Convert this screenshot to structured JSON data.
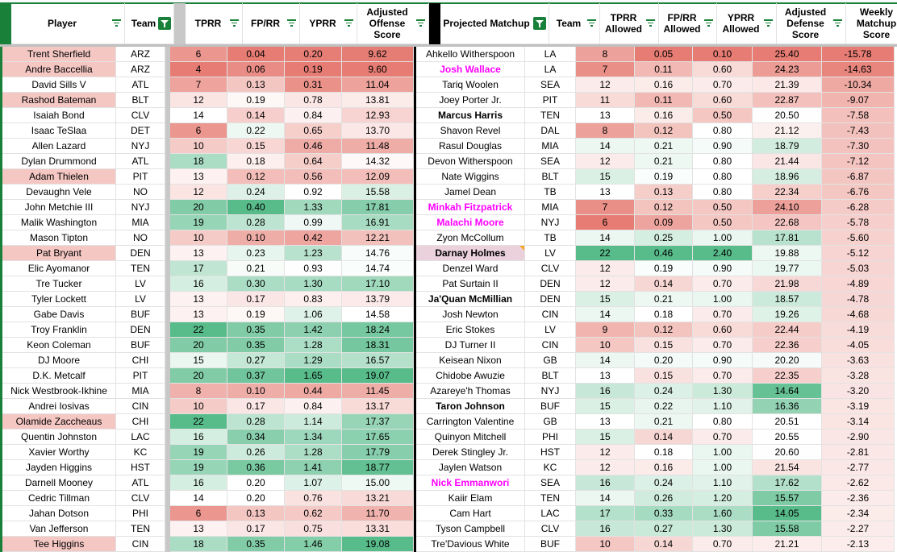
{
  "headers": {
    "player": "Player",
    "team": "Team",
    "tprr": "TPRR",
    "fprr": "FP/RR",
    "yprr": "YPRR",
    "adj_off": "Adjusted Offense Score",
    "matchup": "Projected Matchup",
    "team2": "Team",
    "tprr_allowed": "TPRR Allowed",
    "fprr_allowed": "FP/RR Allowed",
    "yprr_allowed": "YPRR Allowed",
    "adj_def": "Adjusted Defense Score",
    "weekly": "Weekly Matchup Score"
  },
  "colors": {
    "red": "#e67c73",
    "white": "#ffffff",
    "green": "#57bb8a",
    "filter_green": "#188038",
    "highlight": "#f4c7c3",
    "magenta": "#ff00ff"
  },
  "rows": [
    {
      "player": "Trent Sherfield",
      "team": "ARZ",
      "tprr": "6",
      "fprr": "0.04",
      "yprr": "0.20",
      "adj_off": "9.62",
      "pstyle": "hl",
      "matchup": "Ahkello Witherspoon",
      "team2": "LA",
      "ta": "8",
      "fa": "0.05",
      "ya": "0.10",
      "ad": "25.40",
      "wk": "-15.78",
      "mstyle": ""
    },
    {
      "player": "Andre Baccellia",
      "team": "ARZ",
      "tprr": "4",
      "fprr": "0.06",
      "yprr": "0.19",
      "adj_off": "9.60",
      "pstyle": "hl",
      "matchup": "Josh Wallace",
      "team2": "LA",
      "ta": "7",
      "fa": "0.11",
      "ya": "0.60",
      "ad": "24.23",
      "wk": "-14.63",
      "mstyle": "magenta"
    },
    {
      "player": "David Sills V",
      "team": "ATL",
      "tprr": "7",
      "fprr": "0.13",
      "yprr": "0.31",
      "adj_off": "11.04",
      "pstyle": "",
      "matchup": "Tariq Woolen",
      "team2": "SEA",
      "ta": "12",
      "fa": "0.16",
      "ya": "0.70",
      "ad": "21.39",
      "wk": "-10.34",
      "mstyle": ""
    },
    {
      "player": "Rashod Bateman",
      "team": "BLT",
      "tprr": "12",
      "fprr": "0.19",
      "yprr": "0.78",
      "adj_off": "13.81",
      "pstyle": "hl",
      "matchup": "Joey Porter Jr.",
      "team2": "PIT",
      "ta": "11",
      "fa": "0.11",
      "ya": "0.60",
      "ad": "22.87",
      "wk": "-9.07",
      "mstyle": ""
    },
    {
      "player": "Isaiah Bond",
      "team": "CLV",
      "tprr": "14",
      "fprr": "0.14",
      "yprr": "0.84",
      "adj_off": "12.93",
      "pstyle": "",
      "matchup": "Marcus Harris",
      "team2": "TEN",
      "ta": "13",
      "fa": "0.16",
      "ya": "0.50",
      "ad": "20.50",
      "wk": "-7.58",
      "mstyle": "bold"
    },
    {
      "player": "Isaac TeSlaa",
      "team": "DET",
      "tprr": "6",
      "fprr": "0.22",
      "yprr": "0.65",
      "adj_off": "13.70",
      "pstyle": "",
      "matchup": "Shavon Revel",
      "team2": "DAL",
      "ta": "8",
      "fa": "0.12",
      "ya": "0.80",
      "ad": "21.12",
      "wk": "-7.43",
      "mstyle": ""
    },
    {
      "player": "Allen Lazard",
      "team": "NYJ",
      "tprr": "10",
      "fprr": "0.15",
      "yprr": "0.46",
      "adj_off": "11.48",
      "pstyle": "",
      "matchup": "Rasul Douglas",
      "team2": "MIA",
      "ta": "14",
      "fa": "0.21",
      "ya": "0.90",
      "ad": "18.79",
      "wk": "-7.30",
      "mstyle": ""
    },
    {
      "player": "Dylan Drummond",
      "team": "ATL",
      "tprr": "18",
      "fprr": "0.18",
      "yprr": "0.64",
      "adj_off": "14.32",
      "pstyle": "",
      "matchup": "Devon Witherspoon",
      "team2": "SEA",
      "ta": "12",
      "fa": "0.21",
      "ya": "0.80",
      "ad": "21.44",
      "wk": "-7.12",
      "mstyle": ""
    },
    {
      "player": "Adam Thielen",
      "team": "PIT",
      "tprr": "13",
      "fprr": "0.12",
      "yprr": "0.56",
      "adj_off": "12.09",
      "pstyle": "hl",
      "matchup": "Nate Wiggins",
      "team2": "BLT",
      "ta": "15",
      "fa": "0.19",
      "ya": "0.80",
      "ad": "18.96",
      "wk": "-6.87",
      "mstyle": ""
    },
    {
      "player": "Devaughn Vele",
      "team": "NO",
      "tprr": "12",
      "fprr": "0.24",
      "yprr": "0.92",
      "adj_off": "15.58",
      "pstyle": "",
      "matchup": "Jamel Dean",
      "team2": "TB",
      "ta": "13",
      "fa": "0.13",
      "ya": "0.80",
      "ad": "22.34",
      "wk": "-6.76",
      "mstyle": ""
    },
    {
      "player": "John Metchie III",
      "team": "NYJ",
      "tprr": "20",
      "fprr": "0.40",
      "yprr": "1.33",
      "adj_off": "17.81",
      "pstyle": "",
      "matchup": "Minkah Fitzpatrick",
      "team2": "MIA",
      "ta": "7",
      "fa": "0.12",
      "ya": "0.50",
      "ad": "24.10",
      "wk": "-6.28",
      "mstyle": "magenta"
    },
    {
      "player": "Malik Washington",
      "team": "MIA",
      "tprr": "19",
      "fprr": "0.28",
      "yprr": "0.99",
      "adj_off": "16.91",
      "pstyle": "",
      "matchup": "Malachi Moore",
      "team2": "NYJ",
      "ta": "6",
      "fa": "0.09",
      "ya": "0.50",
      "ad": "22.68",
      "wk": "-5.78",
      "mstyle": "magenta"
    },
    {
      "player": "Mason Tipton",
      "team": "NO",
      "tprr": "10",
      "fprr": "0.10",
      "yprr": "0.42",
      "adj_off": "12.21",
      "pstyle": "",
      "matchup": "Zyon McCollum",
      "team2": "TB",
      "ta": "14",
      "fa": "0.25",
      "ya": "1.00",
      "ad": "17.81",
      "wk": "-5.60",
      "mstyle": ""
    },
    {
      "player": "Pat Bryant",
      "team": "DEN",
      "tprr": "13",
      "fprr": "0.23",
      "yprr": "1.23",
      "adj_off": "14.76",
      "pstyle": "hl",
      "matchup": "Darnay Holmes",
      "team2": "LV",
      "ta": "22",
      "fa": "0.46",
      "ya": "2.40",
      "ad": "19.88",
      "wk": "-5.12",
      "mstyle": "boldhl"
    },
    {
      "player": "Elic Ayomanor",
      "team": "TEN",
      "tprr": "17",
      "fprr": "0.21",
      "yprr": "0.93",
      "adj_off": "14.74",
      "pstyle": "",
      "matchup": "Denzel Ward",
      "team2": "CLV",
      "ta": "12",
      "fa": "0.19",
      "ya": "0.90",
      "ad": "19.77",
      "wk": "-5.03",
      "mstyle": ""
    },
    {
      "player": "Tre Tucker",
      "team": "LV",
      "tprr": "16",
      "fprr": "0.30",
      "yprr": "1.30",
      "adj_off": "17.10",
      "pstyle": "",
      "matchup": "Pat Surtain II",
      "team2": "DEN",
      "ta": "12",
      "fa": "0.14",
      "ya": "0.70",
      "ad": "21.98",
      "wk": "-4.89",
      "mstyle": ""
    },
    {
      "player": "Tyler Lockett",
      "team": "LV",
      "tprr": "13",
      "fprr": "0.17",
      "yprr": "0.83",
      "adj_off": "13.79",
      "pstyle": "",
      "matchup": "Ja'Quan McMillian",
      "team2": "DEN",
      "ta": "15",
      "fa": "0.21",
      "ya": "1.00",
      "ad": "18.57",
      "wk": "-4.78",
      "mstyle": "bold"
    },
    {
      "player": "Gabe Davis",
      "team": "BUF",
      "tprr": "13",
      "fprr": "0.19",
      "yprr": "1.06",
      "adj_off": "14.58",
      "pstyle": "",
      "matchup": "Josh Newton",
      "team2": "CIN",
      "ta": "14",
      "fa": "0.18",
      "ya": "0.70",
      "ad": "19.26",
      "wk": "-4.68",
      "mstyle": ""
    },
    {
      "player": "Troy Franklin",
      "team": "DEN",
      "tprr": "22",
      "fprr": "0.35",
      "yprr": "1.42",
      "adj_off": "18.24",
      "pstyle": "",
      "matchup": "Eric Stokes",
      "team2": "LV",
      "ta": "9",
      "fa": "0.12",
      "ya": "0.60",
      "ad": "22.44",
      "wk": "-4.19",
      "mstyle": ""
    },
    {
      "player": "Keon Coleman",
      "team": "BUF",
      "tprr": "20",
      "fprr": "0.35",
      "yprr": "1.28",
      "adj_off": "18.31",
      "pstyle": "",
      "matchup": "DJ Turner II",
      "team2": "CIN",
      "ta": "10",
      "fa": "0.15",
      "ya": "0.70",
      "ad": "22.36",
      "wk": "-4.05",
      "mstyle": ""
    },
    {
      "player": "DJ Moore",
      "team": "CHI",
      "tprr": "15",
      "fprr": "0.27",
      "yprr": "1.29",
      "adj_off": "16.57",
      "pstyle": "",
      "matchup": "Keisean Nixon",
      "team2": "GB",
      "ta": "14",
      "fa": "0.20",
      "ya": "0.90",
      "ad": "20.20",
      "wk": "-3.63",
      "mstyle": ""
    },
    {
      "player": "D.K. Metcalf",
      "team": "PIT",
      "tprr": "20",
      "fprr": "0.37",
      "yprr": "1.65",
      "adj_off": "19.07",
      "pstyle": "",
      "matchup": "Chidobe Awuzie",
      "team2": "BLT",
      "ta": "13",
      "fa": "0.15",
      "ya": "0.70",
      "ad": "22.35",
      "wk": "-3.28",
      "mstyle": ""
    },
    {
      "player": "Nick Westbrook-Ikhine",
      "team": "MIA",
      "tprr": "8",
      "fprr": "0.10",
      "yprr": "0.44",
      "adj_off": "11.45",
      "pstyle": "",
      "matchup": "Azareye'h Thomas",
      "team2": "NYJ",
      "ta": "16",
      "fa": "0.24",
      "ya": "1.30",
      "ad": "14.64",
      "wk": "-3.20",
      "mstyle": ""
    },
    {
      "player": "Andrei Iosivas",
      "team": "CIN",
      "tprr": "10",
      "fprr": "0.17",
      "yprr": "0.84",
      "adj_off": "13.17",
      "pstyle": "",
      "matchup": "Taron Johnson",
      "team2": "BUF",
      "ta": "15",
      "fa": "0.22",
      "ya": "1.10",
      "ad": "16.36",
      "wk": "-3.19",
      "mstyle": "bold"
    },
    {
      "player": "Olamide Zaccheaus",
      "team": "CHI",
      "tprr": "22",
      "fprr": "0.28",
      "yprr": "1.14",
      "adj_off": "17.37",
      "pstyle": "hl",
      "matchup": "Carrington Valentine",
      "team2": "GB",
      "ta": "13",
      "fa": "0.21",
      "ya": "0.80",
      "ad": "20.51",
      "wk": "-3.14",
      "mstyle": ""
    },
    {
      "player": "Quentin Johnston",
      "team": "LAC",
      "tprr": "16",
      "fprr": "0.34",
      "yprr": "1.34",
      "adj_off": "17.65",
      "pstyle": "",
      "matchup": "Quinyon Mitchell",
      "team2": "PHI",
      "ta": "15",
      "fa": "0.14",
      "ya": "0.70",
      "ad": "20.55",
      "wk": "-2.90",
      "mstyle": ""
    },
    {
      "player": "Xavier Worthy",
      "team": "KC",
      "tprr": "19",
      "fprr": "0.26",
      "yprr": "1.28",
      "adj_off": "17.79",
      "pstyle": "",
      "matchup": "Derek Stingley Jr.",
      "team2": "HST",
      "ta": "12",
      "fa": "0.18",
      "ya": "1.00",
      "ad": "20.60",
      "wk": "-2.81",
      "mstyle": ""
    },
    {
      "player": "Jayden Higgins",
      "team": "HST",
      "tprr": "19",
      "fprr": "0.36",
      "yprr": "1.41",
      "adj_off": "18.77",
      "pstyle": "",
      "matchup": "Jaylen Watson",
      "team2": "KC",
      "ta": "12",
      "fa": "0.16",
      "ya": "1.00",
      "ad": "21.54",
      "wk": "-2.77",
      "mstyle": ""
    },
    {
      "player": "Darnell Mooney",
      "team": "ATL",
      "tprr": "16",
      "fprr": "0.20",
      "yprr": "1.07",
      "adj_off": "15.00",
      "pstyle": "",
      "matchup": "Nick Emmanwori",
      "team2": "SEA",
      "ta": "16",
      "fa": "0.24",
      "ya": "1.10",
      "ad": "17.62",
      "wk": "-2.62",
      "mstyle": "magenta"
    },
    {
      "player": "Cedric Tillman",
      "team": "CLV",
      "tprr": "14",
      "fprr": "0.20",
      "yprr": "0.76",
      "adj_off": "13.21",
      "pstyle": "",
      "matchup": "Kaiir Elam",
      "team2": "TEN",
      "ta": "14",
      "fa": "0.26",
      "ya": "1.20",
      "ad": "15.57",
      "wk": "-2.36",
      "mstyle": ""
    },
    {
      "player": "Jahan Dotson",
      "team": "PHI",
      "tprr": "6",
      "fprr": "0.13",
      "yprr": "0.62",
      "adj_off": "11.70",
      "pstyle": "",
      "matchup": "Cam Hart",
      "team2": "LAC",
      "ta": "17",
      "fa": "0.33",
      "ya": "1.60",
      "ad": "14.05",
      "wk": "-2.34",
      "mstyle": ""
    },
    {
      "player": "Van Jefferson",
      "team": "TEN",
      "tprr": "13",
      "fprr": "0.17",
      "yprr": "0.75",
      "adj_off": "13.31",
      "pstyle": "",
      "matchup": "Tyson Campbell",
      "team2": "CLV",
      "ta": "16",
      "fa": "0.27",
      "ya": "1.30",
      "ad": "15.58",
      "wk": "-2.27",
      "mstyle": ""
    },
    {
      "player": "Tee Higgins",
      "team": "CIN",
      "tprr": "18",
      "fprr": "0.35",
      "yprr": "1.46",
      "adj_off": "19.08",
      "pstyle": "hl",
      "matchup": "Tre'Davious White",
      "team2": "BUF",
      "ta": "10",
      "fa": "0.14",
      "ya": "0.70",
      "ad": "21.21",
      "wk": "-2.13",
      "mstyle": ""
    }
  ]
}
